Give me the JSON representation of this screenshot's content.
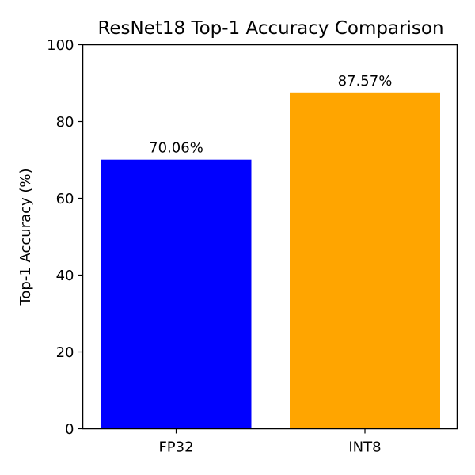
{
  "chart_data": {
    "type": "bar",
    "title": "ResNet18 Top-1 Accuracy Comparison",
    "xlabel": "",
    "ylabel": "Top-1 Accuracy (%)",
    "categories": [
      "FP32",
      "INT8"
    ],
    "values": [
      70.06,
      87.57
    ],
    "value_labels": [
      "70.06%",
      "87.57%"
    ],
    "colors": [
      "#0000ff",
      "#ffa500"
    ],
    "ylim": [
      0,
      100
    ],
    "yticks": [
      0,
      20,
      40,
      60,
      80,
      100
    ],
    "grid": false,
    "legend": "none"
  }
}
